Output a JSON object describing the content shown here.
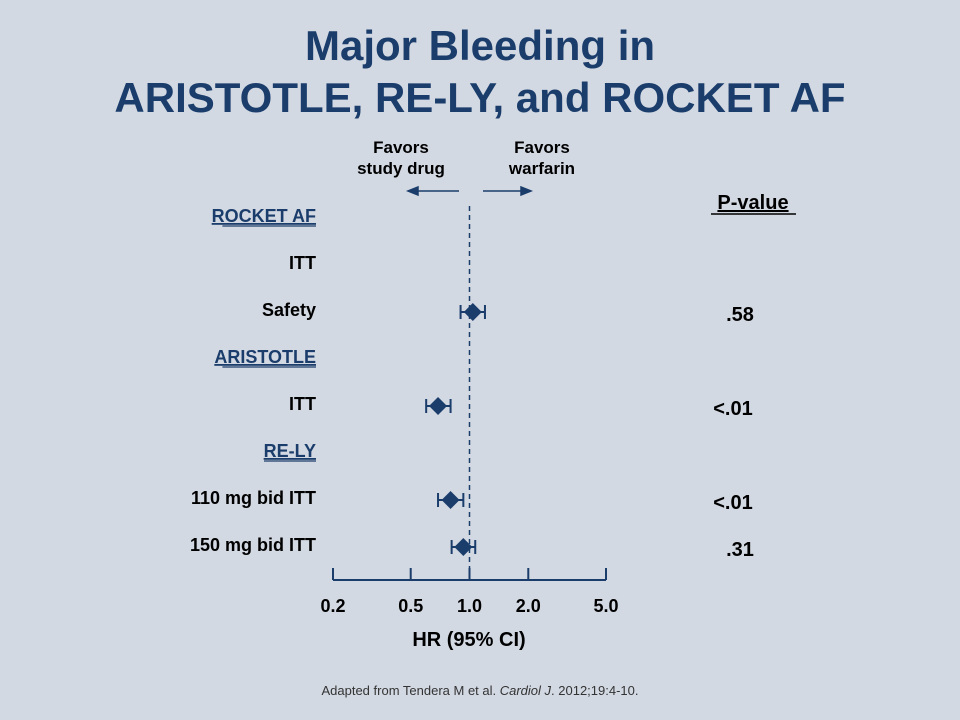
{
  "title": {
    "line1": "Major Bleeding in",
    "line2": "ARISTOTLE, RE-LY, and ROCKET AF"
  },
  "favors": {
    "left_line1": "Favors",
    "left_line2": "study drug",
    "right_line1": "Favors",
    "right_line2": "warfarin"
  },
  "pvalue_header": "P-value",
  "source": {
    "prefix": "Adapted from  Tendera M et al. ",
    "journal": "Cardiol J",
    "suffix": ". 2012;19:4-10."
  },
  "colors": {
    "background": "#d3d9e3",
    "title": "#1b3d6b",
    "marker": "#1b3d6b"
  },
  "chart_data": {
    "type": "forest",
    "xlabel": "HR (95% CI)",
    "x_scale": "log",
    "xlim": [
      0.2,
      5.0
    ],
    "xticks": [
      0.2,
      0.5,
      1.0,
      2.0,
      5.0
    ],
    "xtick_labels": [
      "0.2",
      "0.5",
      "1.0",
      "2.0",
      "5.0"
    ],
    "reference_line": 1.0,
    "rows": [
      {
        "label": "ROCKET AF",
        "group": true
      },
      {
        "label": "ITT",
        "group": false
      },
      {
        "label": "Safety",
        "group": false,
        "hr": 1.04,
        "ci": [
          0.9,
          1.2
        ],
        "p": ".58"
      },
      {
        "label": "ARISTOTLE",
        "group": true
      },
      {
        "label": "ITT",
        "group": false,
        "hr": 0.69,
        "ci": [
          0.6,
          0.8
        ],
        "p": "<.01"
      },
      {
        "label": "RE-LY",
        "group": true
      },
      {
        "label": "110 mg bid ITT",
        "group": false,
        "hr": 0.8,
        "ci": [
          0.69,
          0.93
        ],
        "p": "<.01"
      },
      {
        "label": "150 mg bid ITT",
        "group": false,
        "hr": 0.93,
        "ci": [
          0.81,
          1.07
        ],
        "p": ".31"
      }
    ]
  }
}
